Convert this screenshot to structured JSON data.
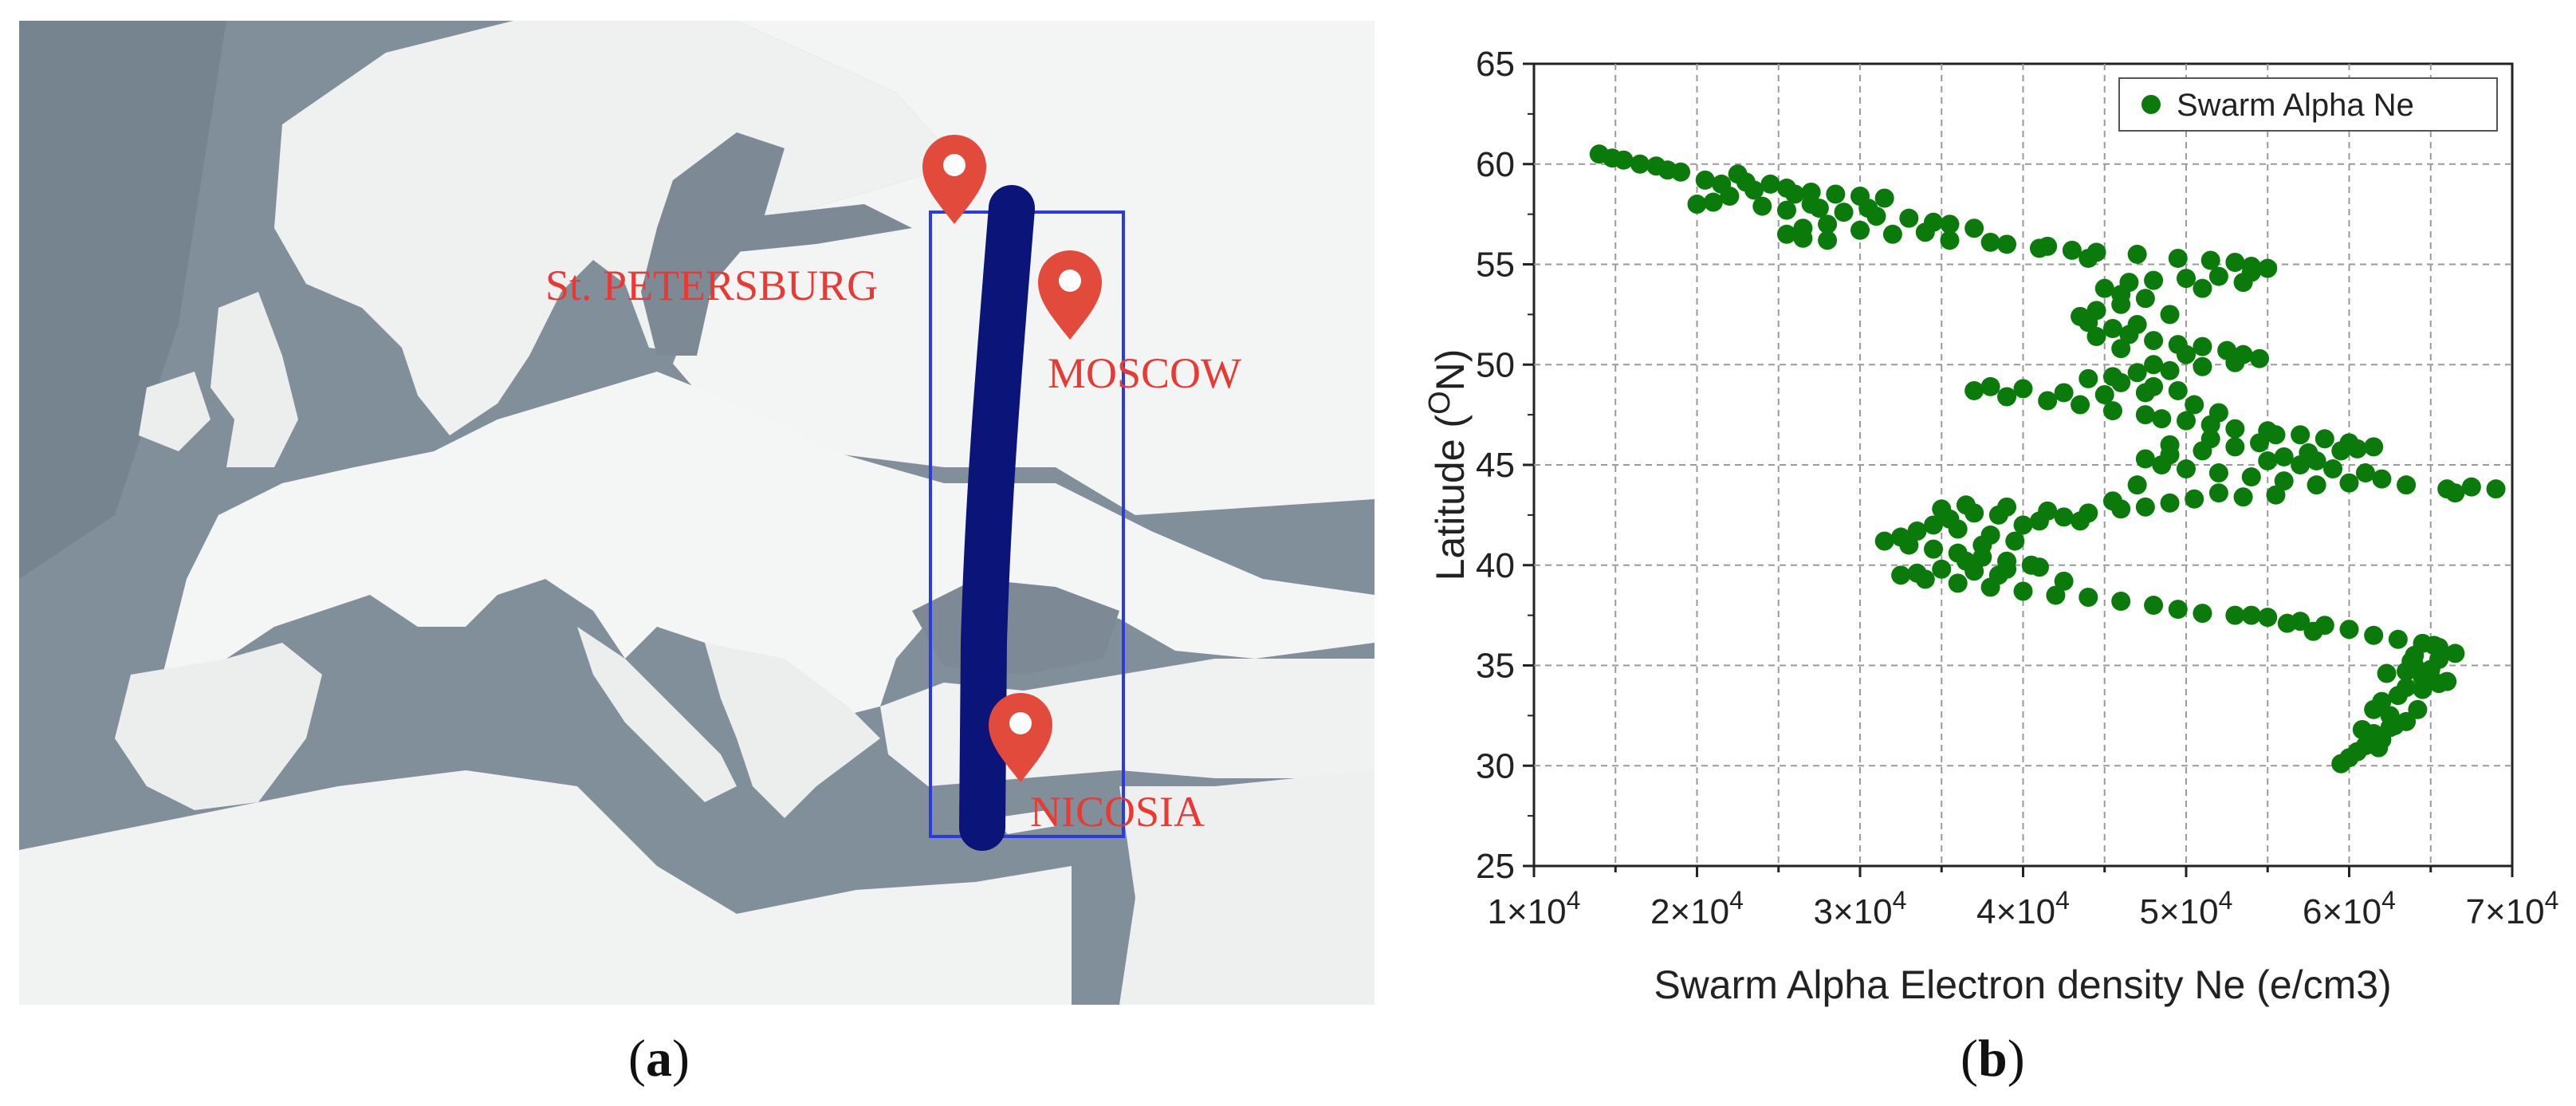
{
  "map": {
    "cities": [
      {
        "name": "St. PETERSBURG"
      },
      {
        "name": "MOSCOW"
      },
      {
        "name": "NICOSIA"
      }
    ],
    "colors": {
      "land": "#f2f3f3",
      "water": "#7d8a96",
      "track": "#0b1478",
      "box": "#2b3be0",
      "marker": "#e24a3b"
    },
    "icon": "map-pin-icon"
  },
  "captions": {
    "a": "a",
    "b": "b"
  },
  "chart_data": {
    "type": "scatter",
    "xlabel": "Swarm Alpha Electron density Ne (e/cm3)",
    "ylabel": "Latitude (",
    "ylabel_sup": "O",
    "ylabel_tail": "N)",
    "xlim": [
      10000,
      70000
    ],
    "ylim": [
      25,
      65
    ],
    "xticks": [
      10000,
      20000,
      30000,
      40000,
      50000,
      60000,
      70000
    ],
    "xtick_labels": [
      {
        "m": "1×10",
        "e": "4"
      },
      {
        "m": "2×10",
        "e": "4"
      },
      {
        "m": "3×10",
        "e": "4"
      },
      {
        "m": "4×10",
        "e": "4"
      },
      {
        "m": "5×10",
        "e": "4"
      },
      {
        "m": "6×10",
        "e": "4"
      },
      {
        "m": "7×10",
        "e": "4"
      }
    ],
    "yticks": [
      25,
      30,
      35,
      40,
      45,
      50,
      55,
      60,
      65
    ],
    "grid": true,
    "legend_position": "top-right",
    "color": "#0a7a0a",
    "series": [
      {
        "name": "Swarm Alpha Ne",
        "points": [
          [
            14000,
            60.5
          ],
          [
            14800,
            60.3
          ],
          [
            15500,
            60.2
          ],
          [
            16500,
            60.0
          ],
          [
            17500,
            59.9
          ],
          [
            18200,
            59.7
          ],
          [
            19000,
            59.6
          ],
          [
            20500,
            59.2
          ],
          [
            21500,
            59.0
          ],
          [
            23000,
            59.1
          ],
          [
            24500,
            59.0
          ],
          [
            25500,
            58.8
          ],
          [
            27000,
            58.6
          ],
          [
            28500,
            58.5
          ],
          [
            30000,
            58.4
          ],
          [
            31500,
            58.3
          ],
          [
            26000,
            58.5
          ],
          [
            23500,
            58.7
          ],
          [
            22000,
            58.4
          ],
          [
            20000,
            58.0
          ],
          [
            21000,
            58.1
          ],
          [
            24000,
            57.9
          ],
          [
            25500,
            57.7
          ],
          [
            27500,
            57.8
          ],
          [
            29000,
            57.6
          ],
          [
            31000,
            57.4
          ],
          [
            33000,
            57.3
          ],
          [
            34500,
            57.1
          ],
          [
            35500,
            57.0
          ],
          [
            37000,
            56.8
          ],
          [
            34000,
            56.6
          ],
          [
            32000,
            56.5
          ],
          [
            30000,
            56.7
          ],
          [
            28000,
            57.0
          ],
          [
            26500,
            56.8
          ],
          [
            25500,
            56.5
          ],
          [
            26500,
            56.3
          ],
          [
            28000,
            56.2
          ],
          [
            35500,
            56.2
          ],
          [
            38000,
            56.1
          ],
          [
            39000,
            56.0
          ],
          [
            41000,
            55.8
          ],
          [
            43000,
            55.7
          ],
          [
            44500,
            55.6
          ],
          [
            47000,
            55.5
          ],
          [
            49500,
            55.3
          ],
          [
            51500,
            55.2
          ],
          [
            53000,
            55.1
          ],
          [
            54000,
            54.9
          ],
          [
            55000,
            54.8
          ],
          [
            54000,
            54.6
          ],
          [
            52000,
            54.4
          ],
          [
            50000,
            54.3
          ],
          [
            48000,
            54.2
          ],
          [
            46500,
            54.1
          ],
          [
            45000,
            53.8
          ],
          [
            46000,
            53.5
          ],
          [
            47500,
            53.3
          ],
          [
            46000,
            53.0
          ],
          [
            44500,
            52.7
          ],
          [
            43500,
            52.4
          ],
          [
            44000,
            52.1
          ],
          [
            45500,
            51.8
          ],
          [
            46500,
            51.5
          ],
          [
            48000,
            51.2
          ],
          [
            49500,
            51.0
          ],
          [
            51000,
            50.9
          ],
          [
            52500,
            50.7
          ],
          [
            53500,
            50.5
          ],
          [
            54500,
            50.3
          ],
          [
            53000,
            50.1
          ],
          [
            51000,
            49.9
          ],
          [
            49000,
            49.7
          ],
          [
            47000,
            49.6
          ],
          [
            45500,
            49.4
          ],
          [
            44000,
            49.3
          ],
          [
            46000,
            49.1
          ],
          [
            48000,
            48.9
          ],
          [
            49500,
            48.7
          ],
          [
            47500,
            48.6
          ],
          [
            45000,
            48.5
          ],
          [
            42500,
            48.6
          ],
          [
            40000,
            48.8
          ],
          [
            38000,
            48.9
          ],
          [
            37000,
            48.7
          ],
          [
            39000,
            48.4
          ],
          [
            41500,
            48.2
          ],
          [
            43500,
            48.0
          ],
          [
            45500,
            47.7
          ],
          [
            47500,
            47.5
          ],
          [
            48500,
            47.3
          ],
          [
            50000,
            47.2
          ],
          [
            51500,
            47.0
          ],
          [
            53000,
            46.8
          ],
          [
            55000,
            46.7
          ],
          [
            57000,
            46.5
          ],
          [
            58500,
            46.3
          ],
          [
            60000,
            46.1
          ],
          [
            61500,
            45.9
          ],
          [
            59500,
            45.7
          ],
          [
            57500,
            45.6
          ],
          [
            56000,
            45.4
          ],
          [
            55000,
            45.2
          ],
          [
            57000,
            45.0
          ],
          [
            59000,
            44.8
          ],
          [
            61000,
            44.6
          ],
          [
            62000,
            44.3
          ],
          [
            60000,
            44.1
          ],
          [
            58000,
            44.0
          ],
          [
            56000,
            44.2
          ],
          [
            54000,
            44.4
          ],
          [
            52000,
            44.6
          ],
          [
            50000,
            44.8
          ],
          [
            48500,
            45.0
          ],
          [
            47500,
            45.3
          ],
          [
            49000,
            45.5
          ],
          [
            51000,
            45.7
          ],
          [
            53000,
            45.9
          ],
          [
            54500,
            46.1
          ],
          [
            63500,
            44.0
          ],
          [
            66000,
            43.8
          ],
          [
            67500,
            43.9
          ],
          [
            69000,
            43.8
          ],
          [
            66500,
            43.6
          ],
          [
            55500,
            43.5
          ],
          [
            53500,
            43.4
          ],
          [
            52000,
            43.6
          ],
          [
            50500,
            43.3
          ],
          [
            49000,
            43.1
          ],
          [
            47500,
            42.9
          ],
          [
            46000,
            42.8
          ],
          [
            44000,
            42.6
          ],
          [
            42500,
            42.4
          ],
          [
            41000,
            42.2
          ],
          [
            40000,
            42.0
          ],
          [
            38500,
            42.5
          ],
          [
            37000,
            42.6
          ],
          [
            35500,
            42.3
          ],
          [
            34500,
            42.0
          ],
          [
            33500,
            41.7
          ],
          [
            32500,
            41.4
          ],
          [
            31500,
            41.2
          ],
          [
            33000,
            41.0
          ],
          [
            34500,
            40.8
          ],
          [
            36000,
            40.6
          ],
          [
            37500,
            40.4
          ],
          [
            39000,
            40.2
          ],
          [
            40500,
            40.0
          ],
          [
            39000,
            39.8
          ],
          [
            37000,
            39.7
          ],
          [
            35000,
            39.8
          ],
          [
            33500,
            39.6
          ],
          [
            32500,
            39.5
          ],
          [
            34000,
            39.3
          ],
          [
            36000,
            39.1
          ],
          [
            38000,
            38.9
          ],
          [
            40000,
            38.7
          ],
          [
            42000,
            38.5
          ],
          [
            44000,
            38.4
          ],
          [
            46000,
            38.2
          ],
          [
            48000,
            38.0
          ],
          [
            49500,
            37.8
          ],
          [
            51000,
            37.6
          ],
          [
            53000,
            37.5
          ],
          [
            55000,
            37.4
          ],
          [
            57000,
            37.2
          ],
          [
            58500,
            37.0
          ],
          [
            60000,
            36.8
          ],
          [
            61500,
            36.5
          ],
          [
            63000,
            36.3
          ],
          [
            64500,
            36.1
          ],
          [
            65500,
            35.9
          ],
          [
            66500,
            35.6
          ],
          [
            65500,
            35.3
          ],
          [
            64000,
            35.0
          ],
          [
            63500,
            34.7
          ],
          [
            64500,
            34.4
          ],
          [
            65500,
            34.1
          ],
          [
            64500,
            33.8
          ],
          [
            63000,
            33.5
          ],
          [
            62000,
            33.2
          ],
          [
            61500,
            32.8
          ],
          [
            62500,
            32.5
          ],
          [
            63500,
            32.2
          ],
          [
            62500,
            31.9
          ],
          [
            61500,
            31.6
          ],
          [
            62000,
            31.3
          ],
          [
            61000,
            31.0
          ],
          [
            60500,
            30.7
          ],
          [
            60000,
            30.4
          ],
          [
            59500,
            30.1
          ],
          [
            36000,
            41.8
          ],
          [
            38000,
            41.5
          ],
          [
            39500,
            41.2
          ],
          [
            37500,
            41.0
          ],
          [
            36500,
            40.2
          ],
          [
            38500,
            39.5
          ],
          [
            41000,
            39.9
          ],
          [
            42500,
            39.2
          ],
          [
            35000,
            42.8
          ],
          [
            36500,
            43.0
          ],
          [
            39000,
            42.9
          ],
          [
            41500,
            42.7
          ],
          [
            43500,
            42.2
          ],
          [
            45500,
            43.2
          ],
          [
            47000,
            44.0
          ],
          [
            49000,
            46.0
          ],
          [
            51500,
            46.3
          ],
          [
            55500,
            46.5
          ],
          [
            58000,
            45.2
          ],
          [
            60500,
            45.8
          ],
          [
            52000,
            47.6
          ],
          [
            50500,
            48.0
          ],
          [
            48000,
            50.0
          ],
          [
            50000,
            50.5
          ],
          [
            46000,
            50.8
          ],
          [
            44500,
            51.4
          ],
          [
            47000,
            52.0
          ],
          [
            49000,
            52.5
          ],
          [
            51000,
            53.8
          ],
          [
            53500,
            54.1
          ],
          [
            44000,
            55.3
          ],
          [
            41500,
            55.9
          ],
          [
            30500,
            57.8
          ],
          [
            27000,
            58.0
          ],
          [
            22500,
            59.5
          ],
          [
            64000,
            35.5
          ],
          [
            65000,
            34.8
          ],
          [
            63500,
            33.9
          ],
          [
            62800,
            32.0
          ],
          [
            60800,
            31.8
          ],
          [
            61800,
            30.9
          ],
          [
            63800,
            35.2
          ],
          [
            66000,
            34.2
          ],
          [
            64200,
            32.8
          ],
          [
            62300,
            34.6
          ],
          [
            65200,
            36.0
          ],
          [
            57800,
            36.7
          ],
          [
            56200,
            37.1
          ],
          [
            54000,
            37.5
          ]
        ]
      }
    ]
  }
}
